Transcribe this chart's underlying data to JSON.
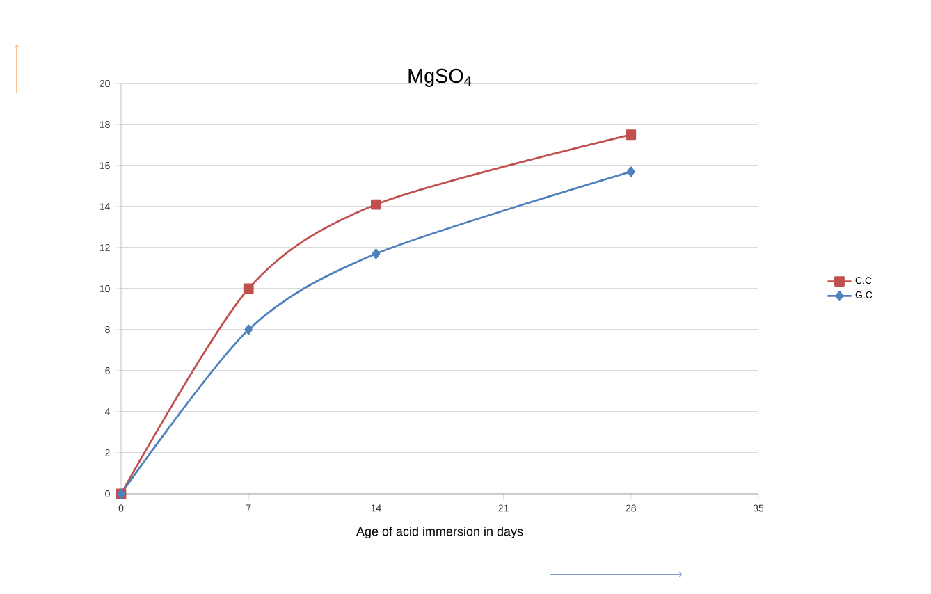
{
  "chart_data": {
    "type": "line",
    "title": "MgSO$_{4}$",
    "xlabel": "Age of acid immersion in days",
    "x": [
      0,
      7,
      14,
      28
    ],
    "series": [
      {
        "name": "C.C",
        "color": "#c0504d",
        "values": [
          0,
          10,
          14.1,
          17.5
        ],
        "marker": "square"
      },
      {
        "name": "G.C",
        "color": "#4f81bd",
        "values": [
          0,
          8,
          11.7,
          15.7
        ],
        "marker": "diamond"
      }
    ],
    "xlim": [
      0,
      35
    ],
    "xticks": [
      0,
      7,
      14,
      21,
      28,
      35
    ],
    "ylim": [
      0,
      20
    ],
    "yticks": [
      0,
      2,
      4,
      6,
      8,
      10,
      12,
      14,
      16,
      18,
      20
    ],
    "grid": "y",
    "legend": "right",
    "line_style": "solid"
  }
}
